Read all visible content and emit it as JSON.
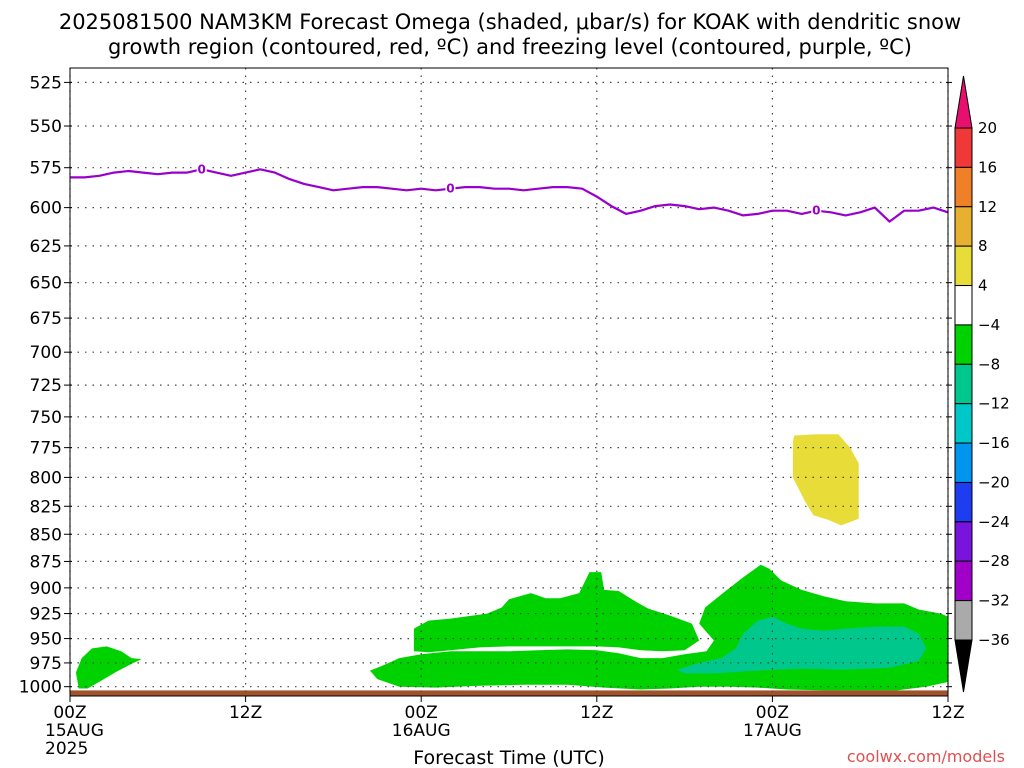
{
  "chart_data": {
    "type": "heatmap",
    "title_lines": [
      "2025081500 NAM3KM Forecast Omega (shaded, μbar/s) for KOAK with dendritic snow",
      "growth region (contoured, red, ºC) and freezing level (contoured, purple, ºC)"
    ],
    "xlabel": "Forecast Time (UTC)",
    "credit": "coolwx.com/models",
    "x_ticks": [
      {
        "hour": 0,
        "lines": [
          "00Z",
          "15AUG",
          "2025"
        ]
      },
      {
        "hour": 12,
        "lines": [
          "12Z"
        ]
      },
      {
        "hour": 24,
        "lines": [
          "00Z",
          "16AUG"
        ]
      },
      {
        "hour": 36,
        "lines": [
          "12Z"
        ]
      },
      {
        "hour": 48,
        "lines": [
          "00Z",
          "17AUG"
        ]
      },
      {
        "hour": 60,
        "lines": [
          "12Z"
        ]
      }
    ],
    "xlim": [
      0,
      60
    ],
    "y_scale": "log",
    "ylim": [
      1010,
      517
    ],
    "y_ticks": [
      525,
      550,
      575,
      600,
      625,
      650,
      675,
      700,
      725,
      750,
      775,
      800,
      825,
      850,
      875,
      900,
      925,
      950,
      975,
      1000
    ],
    "grid": true,
    "colorbar": {
      "labels": [
        "20",
        "16",
        "12",
        "8",
        "4",
        "−4",
        "−8",
        "−12",
        "−16",
        "−20",
        "−24",
        "−28",
        "−32",
        "−36"
      ],
      "colors": [
        "#e8106e",
        "#f03838",
        "#f08028",
        "#e8b030",
        "#e8dc38",
        "#ffffff",
        "#00d200",
        "#00c88c",
        "#00c8c8",
        "#0096f0",
        "#1e3cf0",
        "#7814dc",
        "#a000c8",
        "#aaaaaa",
        "#000000"
      ]
    },
    "freezing_level": {
      "label": "0",
      "color": "#9900cc",
      "points": [
        [
          0,
          581
        ],
        [
          1,
          581
        ],
        [
          2,
          580
        ],
        [
          3,
          578
        ],
        [
          4,
          577
        ],
        [
          5,
          578
        ],
        [
          6,
          579
        ],
        [
          7,
          578
        ],
        [
          8,
          578
        ],
        [
          9,
          576
        ],
        [
          10,
          578
        ],
        [
          11,
          580
        ],
        [
          12,
          578
        ],
        [
          13,
          576
        ],
        [
          14,
          578
        ],
        [
          15,
          582
        ],
        [
          16,
          585
        ],
        [
          17,
          587
        ],
        [
          18,
          589
        ],
        [
          19,
          588
        ],
        [
          20,
          587
        ],
        [
          21,
          587
        ],
        [
          22,
          588
        ],
        [
          23,
          589
        ],
        [
          24,
          588
        ],
        [
          25,
          589
        ],
        [
          26,
          588
        ],
        [
          27,
          587
        ],
        [
          28,
          587
        ],
        [
          29,
          588
        ],
        [
          30,
          588
        ],
        [
          31,
          589
        ],
        [
          32,
          588
        ],
        [
          33,
          587
        ],
        [
          34,
          587
        ],
        [
          35,
          588
        ],
        [
          36,
          593
        ],
        [
          37,
          599
        ],
        [
          38,
          604
        ],
        [
          39,
          602
        ],
        [
          40,
          599
        ],
        [
          41,
          598
        ],
        [
          42,
          599
        ],
        [
          43,
          601
        ],
        [
          44,
          600
        ],
        [
          45,
          602
        ],
        [
          46,
          605
        ],
        [
          47,
          604
        ],
        [
          48,
          602
        ],
        [
          49,
          602
        ],
        [
          50,
          604
        ],
        [
          51,
          602
        ],
        [
          52,
          603
        ],
        [
          53,
          605
        ],
        [
          54,
          603
        ],
        [
          55,
          600
        ],
        [
          56,
          609
        ],
        [
          57,
          602
        ],
        [
          58,
          602
        ],
        [
          59,
          600
        ],
        [
          60,
          603
        ]
      ],
      "label_hours": [
        9,
        26,
        51
      ]
    },
    "omega_regions": [
      {
        "value_range": "−4 to −8",
        "color": "#00d200",
        "points": [
          [
            0.6,
            1002
          ],
          [
            0.4,
            985
          ],
          [
            0.8,
            970
          ],
          [
            1.5,
            960
          ],
          [
            2.5,
            958
          ],
          [
            3.5,
            963
          ],
          [
            4.2,
            970
          ],
          [
            4.9,
            971
          ],
          [
            4.2,
            976
          ],
          [
            3.2,
            984
          ],
          [
            2.2,
            993
          ],
          [
            1.2,
            1002
          ]
        ]
      },
      {
        "value_range": "−4 to −8",
        "color": "#00d200",
        "points": [
          [
            20.5,
            983
          ],
          [
            21.5,
            977
          ],
          [
            22.5,
            970
          ],
          [
            24,
            966
          ],
          [
            26,
            963
          ],
          [
            28,
            963
          ],
          [
            30,
            963
          ],
          [
            32,
            962
          ],
          [
            34,
            961
          ],
          [
            36,
            962
          ],
          [
            37.5,
            965
          ],
          [
            39,
            970
          ],
          [
            40.5,
            970
          ],
          [
            42,
            966
          ],
          [
            43.5,
            963
          ],
          [
            44,
            952
          ],
          [
            43,
            935
          ],
          [
            43.4,
            919
          ],
          [
            44.8,
            903
          ],
          [
            46,
            890
          ],
          [
            47.2,
            878
          ],
          [
            47.8,
            882
          ],
          [
            48.6,
            893
          ],
          [
            50,
            902
          ],
          [
            51.5,
            908
          ],
          [
            53,
            913
          ],
          [
            55,
            915
          ],
          [
            57,
            915
          ],
          [
            58,
            921
          ],
          [
            59.5,
            925
          ],
          [
            60,
            928
          ],
          [
            60,
            995
          ],
          [
            58.5,
            1000
          ],
          [
            56.5,
            1004
          ],
          [
            54,
            1004
          ],
          [
            51.5,
            1004
          ],
          [
            49,
            1003
          ],
          [
            47,
            1001
          ],
          [
            45,
            1000
          ],
          [
            43,
            1000
          ],
          [
            41,
            1002
          ],
          [
            39,
            1003
          ],
          [
            36.5,
            1001
          ],
          [
            34,
            998
          ],
          [
            31,
            998
          ],
          [
            28,
            999
          ],
          [
            25,
            1001
          ],
          [
            22.5,
            1000
          ],
          [
            21,
            992
          ]
        ]
      },
      {
        "value_range": "−4 to −8",
        "color": "#00d200",
        "points": [
          [
            23.5,
            963
          ],
          [
            23.5,
            940
          ],
          [
            24.5,
            932
          ],
          [
            26,
            930
          ],
          [
            27,
            928
          ],
          [
            28.5,
            925
          ],
          [
            29.5,
            919
          ],
          [
            30,
            911
          ],
          [
            31.5,
            905
          ],
          [
            32.5,
            910
          ],
          [
            33.5,
            910
          ],
          [
            34.8,
            905
          ],
          [
            35.5,
            885
          ],
          [
            36.3,
            885
          ],
          [
            36.5,
            902
          ],
          [
            37.5,
            903
          ],
          [
            38.5,
            912
          ],
          [
            39.5,
            920
          ],
          [
            41,
            927
          ],
          [
            42.5,
            935
          ],
          [
            43,
            952
          ],
          [
            42,
            962
          ],
          [
            40.5,
            963
          ],
          [
            39,
            962
          ],
          [
            37.5,
            959
          ],
          [
            36,
            958
          ],
          [
            34,
            958
          ],
          [
            32,
            958
          ],
          [
            30,
            958
          ],
          [
            28,
            959
          ],
          [
            26,
            962
          ],
          [
            24.5,
            964
          ]
        ]
      },
      {
        "value_range": "−8 to −12",
        "color": "#00c88c",
        "points": [
          [
            41.5,
            982
          ],
          [
            43,
            975
          ],
          [
            44.5,
            970
          ],
          [
            45.5,
            960
          ],
          [
            46,
            945
          ],
          [
            47,
            932
          ],
          [
            48,
            928
          ],
          [
            49,
            935
          ],
          [
            50,
            940
          ],
          [
            51.5,
            942
          ],
          [
            53,
            940
          ],
          [
            55,
            938
          ],
          [
            57,
            938
          ],
          [
            58,
            945
          ],
          [
            58.5,
            960
          ],
          [
            58,
            973
          ],
          [
            56,
            980
          ],
          [
            53,
            982
          ],
          [
            50,
            981
          ],
          [
            47,
            983
          ],
          [
            44,
            986
          ],
          [
            42,
            986
          ]
        ]
      },
      {
        "value_range": "4 to 8",
        "color": "#e8dc38",
        "points": [
          [
            49.5,
            765
          ],
          [
            51,
            764
          ],
          [
            52.5,
            764
          ],
          [
            53.3,
            775
          ],
          [
            53.9,
            788
          ],
          [
            53.9,
            836
          ],
          [
            52.7,
            842
          ],
          [
            51.8,
            837
          ],
          [
            50.8,
            833
          ],
          [
            50.2,
            820
          ],
          [
            49.4,
            800
          ],
          [
            49.4,
            770
          ]
        ]
      }
    ],
    "ground_band": {
      "color": "#a0522d",
      "from_pressure": 1004,
      "to_pressure": 1013
    }
  }
}
